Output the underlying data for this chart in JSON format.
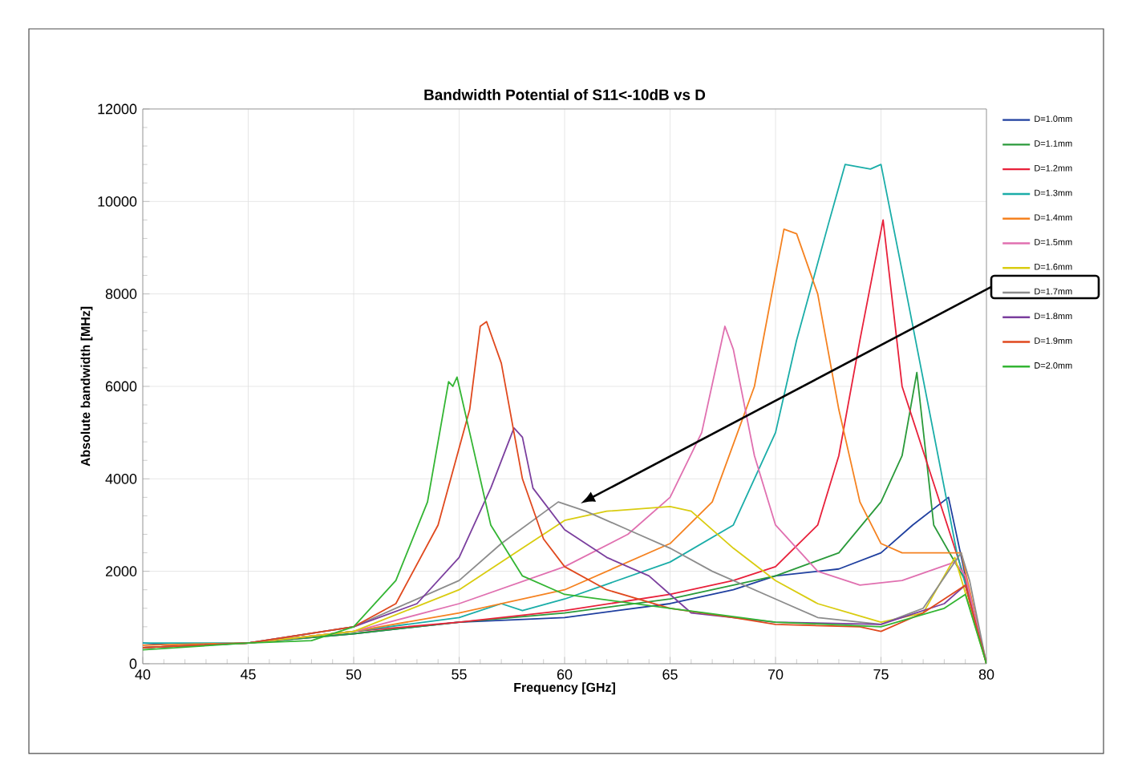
{
  "chart_data": {
    "type": "line",
    "title": "Bandwidth Potential of S11<-10dB vs D",
    "xlabel": "Frequency [GHz]",
    "ylabel": "Absolute bandwidth [MHz]",
    "xlim": [
      40,
      80
    ],
    "ylim": [
      0,
      12000
    ],
    "xticks": [
      40,
      45,
      50,
      55,
      60,
      65,
      70,
      75,
      80
    ],
    "yticks": [
      0,
      2000,
      4000,
      6000,
      8000,
      10000,
      12000
    ],
    "grid": true,
    "legend": "right",
    "marker": "none",
    "line_style": "solid",
    "series": [
      {
        "name": "D=1.0mm",
        "color": "#1f3f9f",
        "x": [
          40,
          42,
          45,
          50,
          55,
          60,
          65,
          68,
          70,
          73,
          75,
          76.5,
          78.2,
          79,
          80
        ],
        "values": [
          450,
          380,
          450,
          650,
          900,
          1000,
          1300,
          1600,
          1900,
          2050,
          2400,
          3000,
          3600,
          1900,
          0
        ]
      },
      {
        "name": "D=1.1mm",
        "color": "#2a9a3a",
        "x": [
          40,
          45,
          50,
          55,
          60,
          65,
          70,
          73,
          75,
          76,
          76.7,
          77.5,
          79,
          80
        ],
        "values": [
          350,
          450,
          650,
          900,
          1100,
          1400,
          1900,
          2400,
          3500,
          4500,
          6300,
          3000,
          1800,
          0
        ]
      },
      {
        "name": "D=1.2mm",
        "color": "#e8203a",
        "x": [
          40,
          45,
          50,
          55,
          60,
          65,
          68,
          70,
          72,
          73,
          74,
          75.1,
          76,
          79,
          80
        ],
        "values": [
          350,
          450,
          700,
          900,
          1150,
          1500,
          1800,
          2100,
          3000,
          4500,
          7000,
          9600,
          6000,
          1800,
          0
        ]
      },
      {
        "name": "D=1.3mm",
        "color": "#1aada8",
        "x": [
          40,
          45,
          50,
          55,
          57,
          58,
          60,
          65,
          68,
          70,
          71,
          72.5,
          73.3,
          74.5,
          75,
          76,
          78.6,
          80
        ],
        "values": [
          450,
          450,
          700,
          1000,
          1300,
          1150,
          1400,
          2200,
          3000,
          5000,
          7000,
          9500,
          10800,
          10700,
          10800,
          8500,
          2400,
          0
        ]
      },
      {
        "name": "D=1.4mm",
        "color": "#f58220",
        "x": [
          40,
          45,
          50,
          55,
          60,
          65,
          67,
          69,
          70.4,
          71,
          72,
          73,
          74,
          75,
          76,
          78.8,
          80
        ],
        "values": [
          400,
          450,
          700,
          1100,
          1600,
          2600,
          3500,
          6000,
          9400,
          9300,
          8000,
          5500,
          3500,
          2600,
          2400,
          2400,
          0
        ]
      },
      {
        "name": "D=1.5mm",
        "color": "#e070b0",
        "x": [
          40,
          45,
          50,
          55,
          60,
          63,
          65,
          66.5,
          67.6,
          68,
          69,
          70,
          72,
          74,
          76,
          78.5,
          79,
          80
        ],
        "values": [
          350,
          450,
          700,
          1300,
          2100,
          2800,
          3600,
          5000,
          7300,
          6800,
          4500,
          3000,
          2000,
          1700,
          1800,
          2200,
          1900,
          0
        ]
      },
      {
        "name": "D=1.6mm",
        "color": "#d9cc10",
        "x": [
          40,
          45,
          50,
          55,
          58,
          60,
          62,
          65,
          66,
          68,
          70,
          72,
          75,
          77,
          78.5,
          80
        ],
        "values": [
          350,
          450,
          700,
          1600,
          2500,
          3100,
          3300,
          3400,
          3300,
          2500,
          1800,
          1300,
          900,
          1100,
          2300,
          0
        ]
      },
      {
        "name": "D=1.7mm",
        "color": "#8c8c8c",
        "x": [
          40,
          45,
          50,
          55,
          57,
          59.7,
          61,
          63,
          65,
          67,
          70,
          72,
          75,
          77,
          78.8,
          79.2,
          80
        ],
        "values": [
          350,
          450,
          800,
          1800,
          2600,
          3500,
          3300,
          2900,
          2500,
          2000,
          1400,
          1000,
          850,
          1200,
          2400,
          1800,
          0
        ]
      },
      {
        "name": "D=1.8mm",
        "color": "#7b3f9e",
        "x": [
          40,
          45,
          50,
          53,
          55,
          56.5,
          57.6,
          58,
          58.5,
          60,
          62,
          64,
          65,
          66,
          68,
          70,
          75,
          78,
          79,
          80
        ],
        "values": [
          350,
          450,
          800,
          1300,
          2300,
          3800,
          5100,
          4900,
          3800,
          2900,
          2300,
          1900,
          1500,
          1100,
          1000,
          900,
          850,
          1300,
          1700,
          0
        ]
      },
      {
        "name": "D=1.9mm",
        "color": "#e0491e",
        "x": [
          40,
          45,
          50,
          52,
          54,
          55.5,
          56,
          56.3,
          57,
          58,
          59,
          60,
          62,
          65,
          68,
          70,
          74,
          75,
          77,
          79,
          80
        ],
        "values": [
          350,
          450,
          800,
          1300,
          3000,
          5500,
          7300,
          7400,
          6500,
          4000,
          2700,
          2100,
          1600,
          1200,
          1000,
          850,
          800,
          700,
          1100,
          1700,
          0
        ]
      },
      {
        "name": "D=2.0mm",
        "color": "#33b533",
        "x": [
          40,
          45,
          48,
          50,
          52,
          53.5,
          54.5,
          54.7,
          54.9,
          55.5,
          56.5,
          58,
          60,
          65,
          70,
          75,
          78,
          79,
          80
        ],
        "values": [
          300,
          450,
          500,
          800,
          1800,
          3500,
          6100,
          6000,
          6200,
          5000,
          3000,
          1900,
          1500,
          1200,
          900,
          800,
          1200,
          1500,
          0
        ]
      }
    ]
  }
}
